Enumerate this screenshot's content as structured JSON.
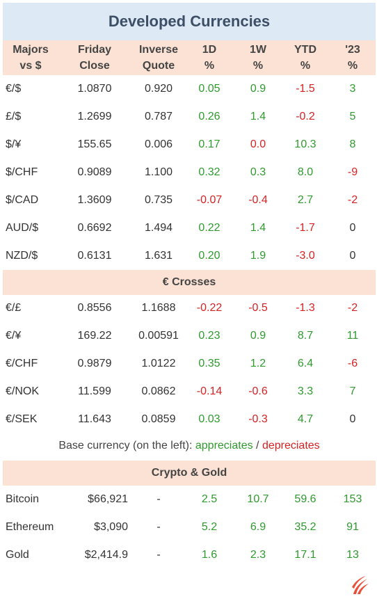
{
  "title": "Developed Currencies",
  "columns": [
    {
      "line1": "Majors",
      "line2": "vs $"
    },
    {
      "line1": "Friday",
      "line2": "Close"
    },
    {
      "line1": "Inverse",
      "line2": "Quote"
    },
    {
      "line1": "1D",
      "line2": "%"
    },
    {
      "line1": "1W",
      "line2": "%"
    },
    {
      "line1": "YTD",
      "line2": "%"
    },
    {
      "line1": "'23",
      "line2": "%"
    }
  ],
  "majors": [
    {
      "pair": "€/$",
      "close": "1.0870",
      "inverse": "0.920",
      "d1": "0.05",
      "w1": "0.9",
      "ytd": "-1.5",
      "y23": "3"
    },
    {
      "pair": "£/$",
      "close": "1.2699",
      "inverse": "0.787",
      "d1": "0.26",
      "w1": "1.4",
      "ytd": "-0.2",
      "y23": "5"
    },
    {
      "pair": "$/¥",
      "close": "155.65",
      "inverse": "0.006",
      "d1": "0.17",
      "w1": "0.0",
      "ytd": "10.3",
      "y23": "8"
    },
    {
      "pair": "$/CHF",
      "close": "0.9089",
      "inverse": "1.100",
      "d1": "0.32",
      "w1": "0.3",
      "ytd": "8.0",
      "y23": "-9"
    },
    {
      "pair": "$/CAD",
      "close": "1.3609",
      "inverse": "0.735",
      "d1": "-0.07",
      "w1": "-0.4",
      "ytd": "2.7",
      "y23": "-2"
    },
    {
      "pair": "AUD/$",
      "close": "0.6692",
      "inverse": "1.494",
      "d1": "0.22",
      "w1": "1.4",
      "ytd": "-1.7",
      "y23": "0"
    },
    {
      "pair": "NZD/$",
      "close": "0.6131",
      "inverse": "1.631",
      "d1": "0.20",
      "w1": "1.9",
      "ytd": "-3.0",
      "y23": "0"
    }
  ],
  "crosses_title": "€ Crosses",
  "crosses": [
    {
      "pair": "€/£",
      "close": "0.8556",
      "inverse": "1.1688",
      "d1": "-0.22",
      "w1": "-0.5",
      "ytd": "-1.3",
      "y23": "-2"
    },
    {
      "pair": "€/¥",
      "close": "169.22",
      "inverse": "0.00591",
      "d1": "0.23",
      "w1": "0.9",
      "ytd": "8.7",
      "y23": "11"
    },
    {
      "pair": "€/CHF",
      "close": "0.9879",
      "inverse": "1.0122",
      "d1": "0.35",
      "w1": "1.2",
      "ytd": "6.4",
      "y23": "-6"
    },
    {
      "pair": "€/NOK",
      "close": "11.599",
      "inverse": "0.0862",
      "d1": "-0.14",
      "w1": "-0.6",
      "ytd": "3.3",
      "y23": "7"
    },
    {
      "pair": "€/SEK",
      "close": "11.643",
      "inverse": "0.0859",
      "d1": "0.03",
      "w1": "-0.3",
      "ytd": "4.7",
      "y23": "0"
    }
  ],
  "legend": {
    "prefix": "Base currency (on the left):",
    "appreciates": "appreciates",
    "separator": "/",
    "depreciates": "depreciates"
  },
  "crypto_title": "Crypto & Gold",
  "crypto": [
    {
      "pair": "Bitcoin",
      "close": "$66,921",
      "inverse": "-",
      "d1": "2.5",
      "w1": "10.7",
      "ytd": "59.6",
      "y23": "153"
    },
    {
      "pair": "Ethereum",
      "close": "$3,090",
      "inverse": "-",
      "d1": "5.2",
      "w1": "6.9",
      "ytd": "35.2",
      "y23": "91"
    },
    {
      "pair": "Gold",
      "close": "$2,414.9",
      "inverse": "-",
      "d1": "1.6",
      "w1": "2.3",
      "ytd": "17.1",
      "y23": "13"
    }
  ],
  "colors": {
    "positive": "#2e9a2e",
    "negative": "#d62222",
    "title_bg": "#dde9f5",
    "header_bg": "#fbe2d4",
    "logo": "#e8503a"
  },
  "logo_icon": "flame-logo-icon"
}
